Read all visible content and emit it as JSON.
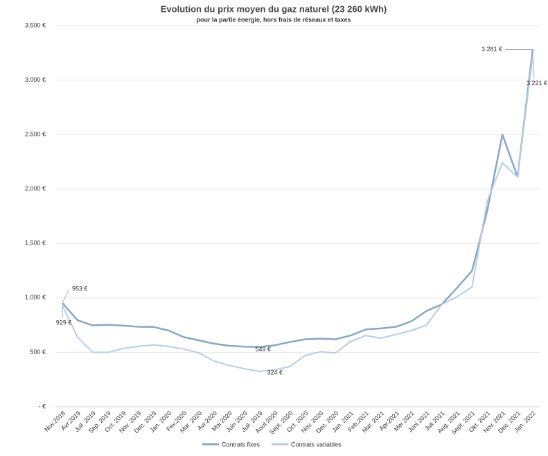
{
  "chart_data": {
    "type": "line",
    "title": "Evolution du prix moyen du gaz naturel (23 260 kWh)",
    "subtitle": "pour la partie énergie, hors frais de réseaux et taxes",
    "categories": [
      "Nov.2018",
      "Avr.2019",
      "Juil. 2019",
      "Sep. 2019",
      "Oct. 2019",
      "Nov. 2019",
      "Dec. 2019",
      "Jan. 2020",
      "Fev.2020",
      "Mar. 2020",
      "Avr.2020",
      "Mai 2020",
      "Juin 2020",
      "Juil. 2019",
      "Aout 2020",
      "Sept. 2020",
      "Oct. 2020",
      "Nov. 2020",
      "Dec. 2020",
      "Jan. 2021",
      "Feb.2021",
      "Mar. 2021",
      "Apr.2021",
      "Mei 2021",
      "Juni 2021",
      "Juli 2021",
      "Aug. 2021",
      "Sept. 2021",
      "Okt. 2021",
      "Nov. 2021",
      "Dec. 2021",
      "Jan. 2022"
    ],
    "series": [
      {
        "name": "Contrats fixes",
        "color": "#87a6c8",
        "values": [
          953,
          795,
          748,
          752,
          745,
          735,
          733,
          700,
          640,
          610,
          580,
          560,
          552,
          549,
          565,
          595,
          620,
          625,
          620,
          655,
          710,
          720,
          735,
          785,
          880,
          940,
          1090,
          1250,
          1800,
          2500,
          2110,
          3281
        ],
        "value_labels": [
          "953 €",
          null,
          null,
          null,
          null,
          null,
          null,
          null,
          null,
          null,
          null,
          null,
          null,
          "549 €",
          null,
          null,
          null,
          null,
          null,
          null,
          null,
          null,
          null,
          null,
          null,
          null,
          null,
          null,
          null,
          null,
          null,
          "3.281 €"
        ]
      },
      {
        "name": "Contrats variables",
        "color": "#b7cde5",
        "values": [
          929,
          640,
          500,
          500,
          535,
          555,
          568,
          555,
          530,
          495,
          420,
          380,
          350,
          324,
          340,
          370,
          470,
          505,
          495,
          600,
          655,
          630,
          665,
          700,
          750,
          940,
          1010,
          1100,
          1890,
          2240,
          2110,
          3221
        ],
        "value_labels": [
          "929 €",
          null,
          null,
          null,
          null,
          null,
          null,
          null,
          null,
          null,
          null,
          null,
          null,
          "324 €",
          null,
          null,
          null,
          null,
          null,
          null,
          null,
          null,
          null,
          null,
          null,
          null,
          null,
          null,
          null,
          null,
          null,
          "3.221 €"
        ]
      }
    ],
    "ylim": [
      0,
      3500
    ],
    "yticks": [
      {
        "value": 0,
        "label": "-  €"
      },
      {
        "value": 500,
        "label": "500 €"
      },
      {
        "value": 1000,
        "label": "1.000 €"
      },
      {
        "value": 1500,
        "label": "1.500 €"
      },
      {
        "value": 2000,
        "label": "2.000 €"
      },
      {
        "value": 2500,
        "label": "2.500 €"
      },
      {
        "value": 3000,
        "label": "3.000 €"
      },
      {
        "value": 3500,
        "label": "3.500 €"
      }
    ],
    "grid": true,
    "legend": "bottom"
  }
}
